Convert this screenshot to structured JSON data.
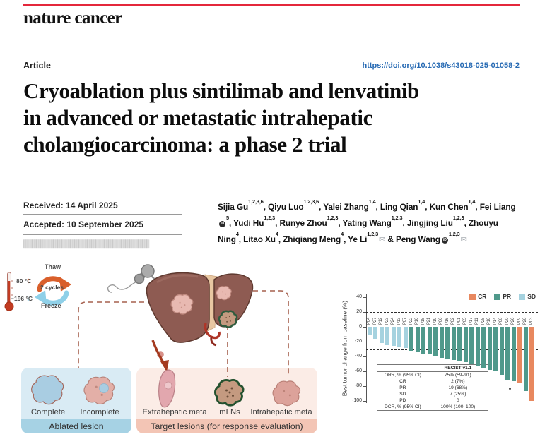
{
  "masthead": {
    "journal": "nature cancer"
  },
  "article_header": {
    "label": "Article",
    "doi": "https://doi.org/10.1038/s43018-025-01058-2"
  },
  "title_lines": [
    "Cryoablation plus sintilimab and lenvatinib",
    "in advanced or metastatic intrahepatic",
    "cholangiocarcinoma: a phase 2 trial"
  ],
  "dates": {
    "received": "Received: 14 April 2025",
    "accepted": "Accepted: 10 September 2025"
  },
  "authors": [
    {
      "name": "Sijia Gu",
      "sup": "1,2,3,6",
      "sep": ", "
    },
    {
      "name": "Qiyu Luo",
      "sup": "1,2,3,6",
      "sep": ", "
    },
    {
      "name": "Yalei Zhang",
      "sup": "1,4",
      "sep": ", "
    },
    {
      "name": "Ling Qian",
      "sup": "1,4",
      "sep": ", "
    },
    {
      "name": "Kun Chen",
      "sup": "1,4",
      "sep": ", "
    },
    {
      "name": "Fei Liang",
      "orcid": true,
      "sup": "5",
      "sep": ", "
    },
    {
      "name": "Yudi Hu",
      "sup": "1,2,3",
      "sep": ", "
    },
    {
      "name": "Runye Zhou",
      "sup": "1,2,3",
      "sep": ", "
    },
    {
      "name": "Yating Wang",
      "sup": "1,2,3",
      "sep": ", "
    },
    {
      "name": "Jingjing Liu",
      "sup": "1,2,3",
      "sep": ", "
    },
    {
      "name": "Zhouyu Ning",
      "sup": "4",
      "sep": ", "
    },
    {
      "name": "Litao Xu",
      "sup": "4",
      "sep": ", "
    },
    {
      "name": "Zhiqiang Meng",
      "sup": "4",
      "sep": ", "
    },
    {
      "name": "Ye Li",
      "sup": "1,2,3",
      "mail": true,
      "sep": " & "
    },
    {
      "name": "Peng Wang",
      "orcid": true,
      "sup": "1,2,3",
      "mail": true,
      "sep": ""
    }
  ],
  "icons": {
    "envelope_char": "✉",
    "orcid_char": "iD"
  },
  "figure": {
    "thermo": {
      "high": "80 °C",
      "low": "−196 °C"
    },
    "cycle": {
      "top": "Thaw",
      "center": "2 cycles",
      "bottom": "Freeze"
    },
    "ablated_panel": {
      "items": [
        "Complete",
        "Incomplete"
      ],
      "caption": "Ablated lesion"
    },
    "target_panel": {
      "items": [
        "Extrahepatic meta",
        "mLNs",
        "Intrahepatic meta"
      ],
      "caption": "Target lesions (for response evaluation)"
    }
  },
  "chart_data": {
    "type": "bar",
    "title": "",
    "xlabel": "",
    "ylabel": "Best tumor change from baseline (%)",
    "ylim": [
      -100,
      40
    ],
    "yticks": [
      40,
      20,
      0,
      -20,
      -40,
      -60,
      -80,
      -100
    ],
    "reference_lines": [
      20,
      -30
    ],
    "grid": false,
    "legend_position": "top-right",
    "legend": [
      "CR",
      "PR",
      "SD"
    ],
    "colors": {
      "CR": "#e8885f",
      "PR": "#4f998b",
      "SD": "#a5d2df"
    },
    "categories": [
      "P04",
      "P27",
      "P12",
      "P23",
      "P24",
      "P13",
      "P07",
      "P22",
      "P10",
      "P15",
      "P21",
      "P19",
      "P06",
      "P16",
      "P02",
      "P01",
      "P05",
      "P17",
      "P11",
      "P25",
      "P18",
      "P14",
      "P08",
      "P20",
      "P26",
      "P09",
      "P28",
      "P03"
    ],
    "values": [
      -10,
      -16,
      -22,
      -25,
      -26,
      -27,
      -29,
      -32,
      -34,
      -36,
      -37,
      -40,
      -42,
      -43,
      -45,
      -47,
      -48,
      -50,
      -52,
      -55,
      -58,
      -60,
      -65,
      -72,
      -73,
      -75,
      -87,
      -100
    ],
    "responses": [
      "SD",
      "SD",
      "SD",
      "SD",
      "SD",
      "SD",
      "SD",
      "PR",
      "PR",
      "PR",
      "PR",
      "PR",
      "PR",
      "PR",
      "PR",
      "PR",
      "PR",
      "PR",
      "PR",
      "PR",
      "PR",
      "PR",
      "PR",
      "PR",
      "PR",
      "CR",
      "PR",
      "CR"
    ],
    "table": {
      "header": [
        "",
        "RECIST v1.1"
      ],
      "rows": [
        [
          "ORR, % (95% CI)",
          "75% (59–91)"
        ],
        [
          "CR",
          "2 (7%)"
        ],
        [
          "PR",
          "19 (68%)"
        ],
        [
          "SD",
          "7 (25%)"
        ],
        [
          "PD",
          "0"
        ],
        [
          "DCR, % (95% CI)",
          "100% (100–100)"
        ]
      ]
    }
  }
}
